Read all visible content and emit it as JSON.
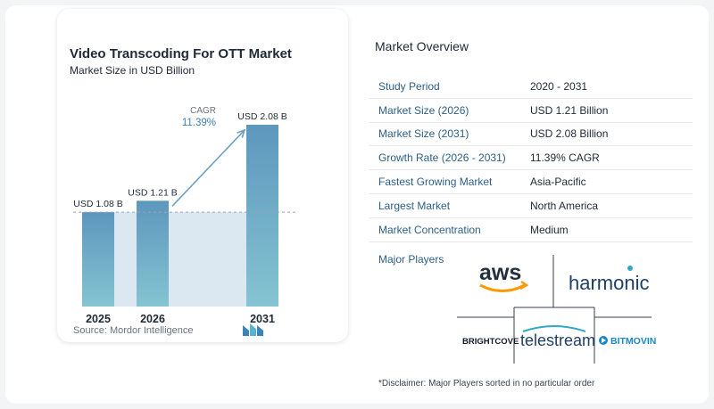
{
  "chart": {
    "title": "Video Transcoding For OTT Market",
    "subtitle": "Market Size in USD Billion",
    "source": "Source:  Mordor Intelligence",
    "cagr_label": "CAGR",
    "cagr_value": "11.39%"
  },
  "chart_data": {
    "type": "bar",
    "categories": [
      "2025",
      "2026",
      "2031"
    ],
    "values": [
      1.08,
      1.21,
      2.08
    ],
    "data_labels": [
      "USD 1.08 B",
      "USD 1.21 B",
      "USD 2.08 B"
    ],
    "title": "Video Transcoding For OTT Market",
    "subtitle": "Market Size in USD Billion",
    "xlabel": "",
    "ylabel": "",
    "ylim": [
      0,
      2.08
    ],
    "grid": false,
    "annotation": "CAGR 11.39%",
    "colors": {
      "bar_top": "#5d97bd",
      "bar_bottom": "#84c4d2",
      "baseline_fill": "#dbe7f1",
      "arrow": "#6a9fc6"
    }
  },
  "overview": {
    "title": "Market Overview",
    "rows": [
      {
        "key": "Study Period",
        "value": "2020 - 2031"
      },
      {
        "key": "Market Size (2026)",
        "value": "USD 1.21 Billion"
      },
      {
        "key": "Market Size (2031)",
        "value": "USD 2.08 Billion"
      },
      {
        "key": "Growth Rate (2026 - 2031)",
        "value": "11.39% CAGR"
      },
      {
        "key": "Fastest Growing Market",
        "value": "Asia-Pacific"
      },
      {
        "key": "Largest Market",
        "value": "North America"
      },
      {
        "key": "Market Concentration",
        "value": "Medium"
      }
    ],
    "players_label": "Major Players",
    "players": [
      "aws",
      "harmonic",
      "BRIGHTCOVE",
      "telestream",
      "BITMOVIN"
    ],
    "disclaimer": "*Disclaimer: Major Players sorted in no particular order"
  }
}
